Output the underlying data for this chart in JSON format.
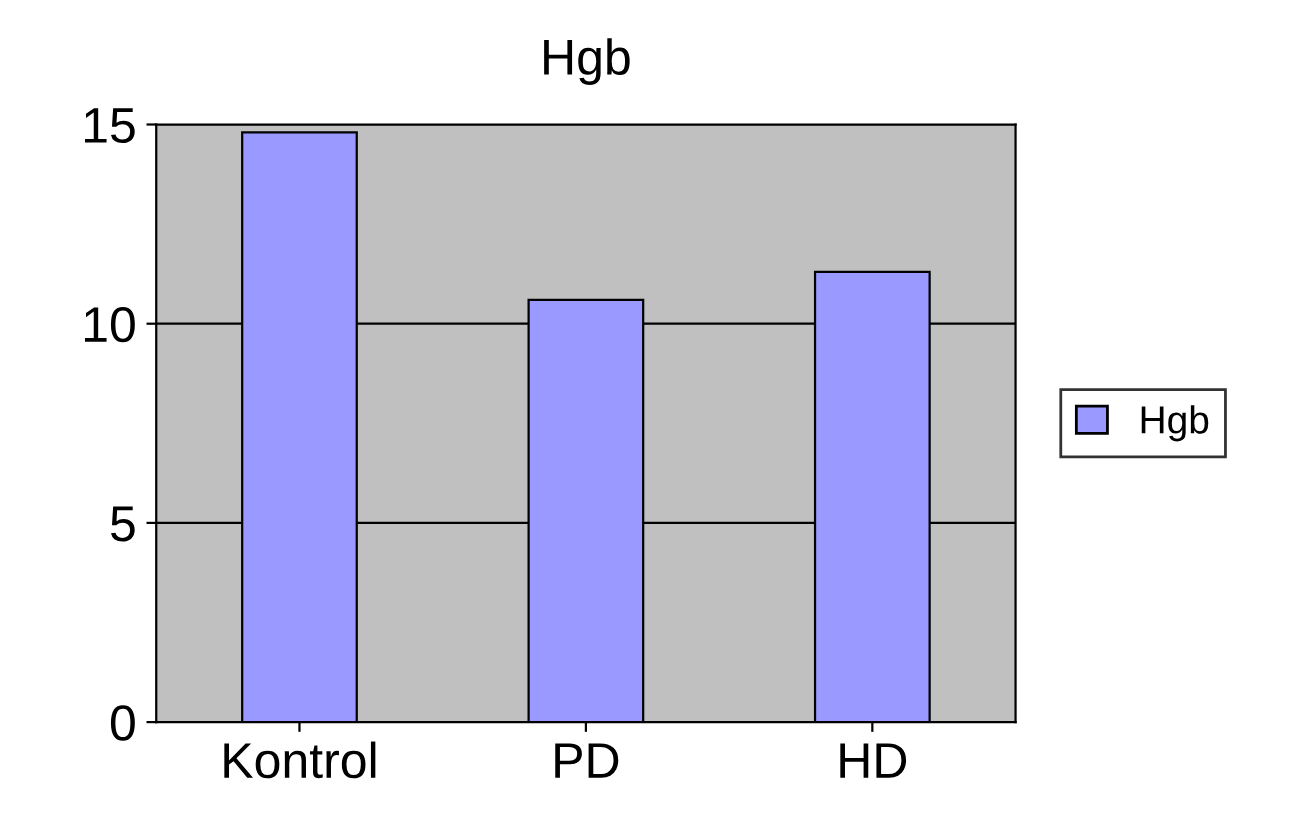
{
  "chart_data": {
    "type": "bar",
    "title": "Hgb",
    "categories": [
      "Kontrol",
      "PD",
      "HD"
    ],
    "series": [
      {
        "name": "Hgb",
        "color": "#9999ff",
        "values": [
          14.8,
          10.6,
          11.3
        ]
      }
    ],
    "ylim": [
      0,
      15
    ],
    "yticks": [
      0,
      5,
      10,
      15
    ],
    "grid": "y",
    "legend": "right"
  }
}
